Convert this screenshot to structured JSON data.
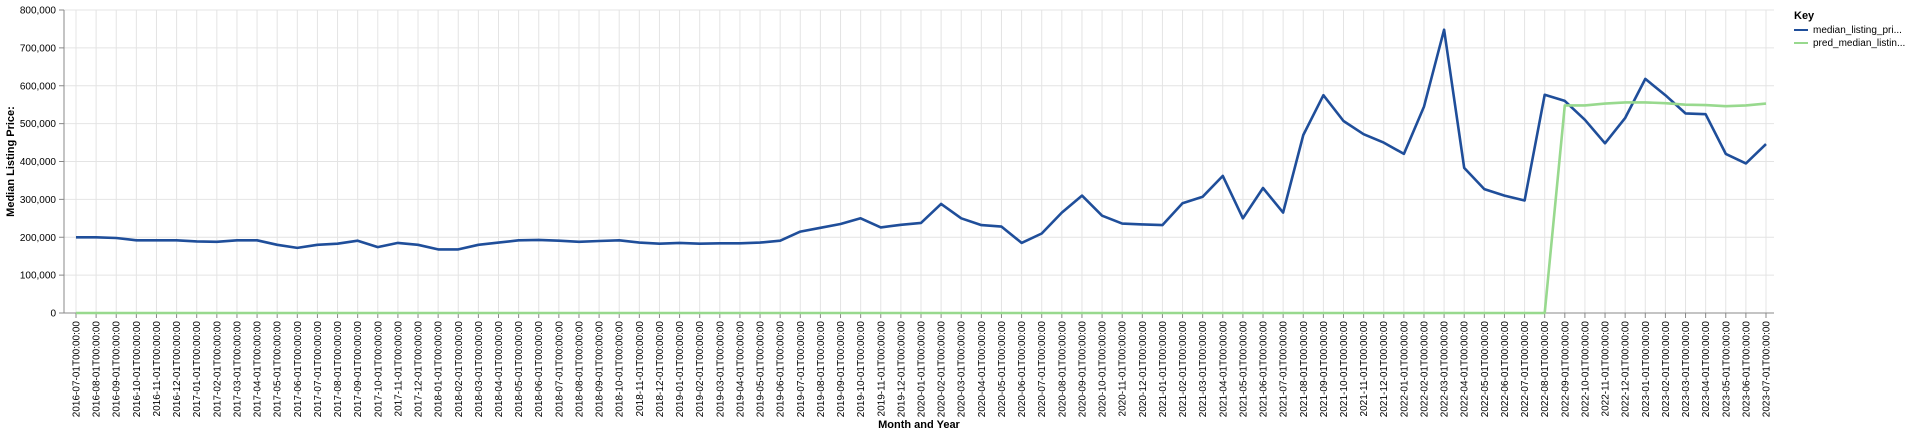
{
  "chart_data": {
    "type": "line",
    "xlabel": "Month and Year",
    "ylabel": "Median Listing Price:",
    "ylim": [
      0,
      800000
    ],
    "y_ticks": [
      "0",
      "100,000",
      "200,000",
      "300,000",
      "400,000",
      "500,000",
      "600,000",
      "700,000",
      "800,000"
    ],
    "y_tick_values": [
      0,
      100000,
      200000,
      300000,
      400000,
      500000,
      600000,
      700000,
      800000
    ],
    "grid": true,
    "legend_position": "top-right",
    "legend_title": "Key",
    "x": [
      "2016-07-01T00:00:00",
      "2016-08-01T00:00:00",
      "2016-09-01T00:00:00",
      "2016-10-01T00:00:00",
      "2016-11-01T00:00:00",
      "2016-12-01T00:00:00",
      "2017-01-01T00:00:00",
      "2017-02-01T00:00:00",
      "2017-03-01T00:00:00",
      "2017-04-01T00:00:00",
      "2017-05-01T00:00:00",
      "2017-06-01T00:00:00",
      "2017-07-01T00:00:00",
      "2017-08-01T00:00:00",
      "2017-09-01T00:00:00",
      "2017-10-01T00:00:00",
      "2017-11-01T00:00:00",
      "2017-12-01T00:00:00",
      "2018-01-01T00:00:00",
      "2018-02-01T00:00:00",
      "2018-03-01T00:00:00",
      "2018-04-01T00:00:00",
      "2018-05-01T00:00:00",
      "2018-06-01T00:00:00",
      "2018-07-01T00:00:00",
      "2018-08-01T00:00:00",
      "2018-09-01T00:00:00",
      "2018-10-01T00:00:00",
      "2018-11-01T00:00:00",
      "2018-12-01T00:00:00",
      "2019-01-01T00:00:00",
      "2019-02-01T00:00:00",
      "2019-03-01T00:00:00",
      "2019-04-01T00:00:00",
      "2019-05-01T00:00:00",
      "2019-06-01T00:00:00",
      "2019-07-01T00:00:00",
      "2019-08-01T00:00:00",
      "2019-09-01T00:00:00",
      "2019-10-01T00:00:00",
      "2019-11-01T00:00:00",
      "2019-12-01T00:00:00",
      "2020-01-01T00:00:00",
      "2020-02-01T00:00:00",
      "2020-03-01T00:00:00",
      "2020-04-01T00:00:00",
      "2020-05-01T00:00:00",
      "2020-06-01T00:00:00",
      "2020-07-01T00:00:00",
      "2020-08-01T00:00:00",
      "2020-09-01T00:00:00",
      "2020-10-01T00:00:00",
      "2020-11-01T00:00:00",
      "2020-12-01T00:00:00",
      "2021-01-01T00:00:00",
      "2021-02-01T00:00:00",
      "2021-03-01T00:00:00",
      "2021-04-01T00:00:00",
      "2021-05-01T00:00:00",
      "2021-06-01T00:00:00",
      "2021-07-01T00:00:00",
      "2021-08-01T00:00:00",
      "2021-09-01T00:00:00",
      "2021-10-01T00:00:00",
      "2021-11-01T00:00:00",
      "2021-12-01T00:00:00",
      "2022-01-01T00:00:00",
      "2022-02-01T00:00:00",
      "2022-03-01T00:00:00",
      "2022-04-01T00:00:00",
      "2022-05-01T00:00:00",
      "2022-06-01T00:00:00",
      "2022-07-01T00:00:00",
      "2022-08-01T00:00:00",
      "2022-09-01T00:00:00",
      "2022-10-01T00:00:00",
      "2022-11-01T00:00:00",
      "2022-12-01T00:00:00",
      "2023-01-01T00:00:00",
      "2023-02-01T00:00:00",
      "2023-03-01T00:00:00",
      "2023-04-01T00:00:00",
      "2023-05-01T00:00:00",
      "2023-06-01T00:00:00",
      "2023-07-01T00:00:00"
    ],
    "series": [
      {
        "name": "median_listing_pri...",
        "color": "#1f4e9a",
        "values": [
          200000,
          200000,
          198000,
          192000,
          192000,
          192000,
          189000,
          188000,
          192000,
          192000,
          180000,
          172000,
          180000,
          183000,
          191000,
          174000,
          185000,
          180000,
          168000,
          168000,
          180000,
          186000,
          192000,
          193000,
          191000,
          188000,
          190000,
          192000,
          186000,
          183000,
          185000,
          183000,
          184000,
          184000,
          186000,
          191000,
          215000,
          225000,
          235000,
          250000,
          226000,
          233000,
          238000,
          288000,
          250000,
          232000,
          228000,
          185000,
          210000,
          265000,
          310000,
          257000,
          236000,
          234000,
          232000,
          290000,
          307000,
          362000,
          250000,
          330000,
          265000,
          470000,
          575000,
          507000,
          472000,
          450000,
          420000,
          545000,
          748000,
          383000,
          327000,
          310000,
          297000,
          576000,
          560000,
          510000,
          448000,
          515000,
          618000,
          575000,
          527000,
          525000,
          420000,
          395000,
          446000
        ]
      },
      {
        "name": "pred_median_listin...",
        "color": "#98d98e",
        "values": [
          0,
          0,
          0,
          0,
          0,
          0,
          0,
          0,
          0,
          0,
          0,
          0,
          0,
          0,
          0,
          0,
          0,
          0,
          0,
          0,
          0,
          0,
          0,
          0,
          0,
          0,
          0,
          0,
          0,
          0,
          0,
          0,
          0,
          0,
          0,
          0,
          0,
          0,
          0,
          0,
          0,
          0,
          0,
          0,
          0,
          0,
          0,
          0,
          0,
          0,
          0,
          0,
          0,
          0,
          0,
          0,
          0,
          0,
          0,
          0,
          0,
          0,
          0,
          0,
          0,
          0,
          0,
          0,
          0,
          0,
          0,
          0,
          0,
          0,
          548000,
          548000,
          553000,
          556000,
          556000,
          554000,
          550000,
          549000,
          546000,
          548000,
          553000
        ]
      }
    ]
  }
}
